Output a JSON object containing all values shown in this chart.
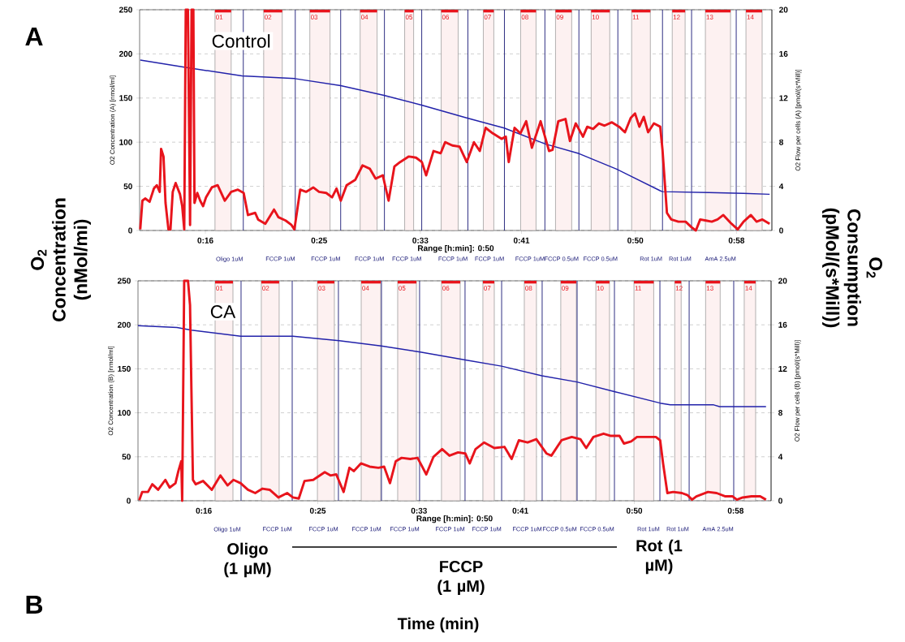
{
  "chart_data": [
    {
      "type": "line",
      "title": "Control",
      "xlabel": "Range [h:min]: 0:50",
      "ylabel": "O2 Concentration (A) [nmol/ml]",
      "y2label": "O2 Flow per cells (A) [pmol/(s*Mill)]",
      "xlim": [
        10.8,
        60.8
      ],
      "xticks": [
        {
          "value": 16,
          "label": "0:16"
        },
        {
          "value": 25,
          "label": "0:25"
        },
        {
          "value": 33,
          "label": "0:33"
        },
        {
          "value": 41,
          "label": "0:41"
        },
        {
          "value": 50,
          "label": "0:50"
        },
        {
          "value": 58,
          "label": "0:58"
        }
      ],
      "ylim": [
        0,
        250
      ],
      "yticks": [
        0,
        50,
        100,
        150,
        200,
        250
      ],
      "y2lim": [
        0,
        20
      ],
      "y2ticks": [
        0,
        4,
        8,
        12,
        16,
        20
      ],
      "grid": "y",
      "series": [
        {
          "color": "#2222aa",
          "x": [
            10.85,
            14.33,
            18.9,
            23.08,
            26.7,
            30.13,
            33.1,
            36.77,
            39.63,
            42.88,
            45.56,
            48.6,
            51.97,
            52.15,
            55.82,
            58.56,
            60.62
          ],
          "values": [
            193,
            185,
            175,
            172,
            164,
            153,
            142,
            127,
            116,
            98,
            87,
            69,
            45,
            44,
            43,
            42,
            41
          ]
        },
        {
          "color": "#e8141c",
          "axis": "y2",
          "x": [
            10.85,
            11.02,
            11.24,
            11.59,
            11.93,
            12.16,
            12.39,
            12.5,
            12.69,
            12.85,
            13.08,
            13.24,
            13.42,
            13.65,
            13.99,
            14.17,
            14.33,
            14.45,
            14.62,
            14.79,
            14.91,
            15.05,
            15.14,
            15.36,
            15.59,
            15.82,
            16.05,
            16.51,
            16.97,
            17.54,
            18.04,
            18.57,
            19.03,
            19.37,
            19.94,
            20.17,
            20.74,
            21.43,
            21.78,
            22.35,
            22.81,
            23.04,
            23.5,
            23.96,
            24.53,
            24.99,
            25.56,
            26.02,
            26.37,
            26.71,
            27.17,
            27.86,
            28.43,
            29.0,
            29.46,
            30.03,
            30.49,
            30.95,
            31.4,
            32.09,
            32.66,
            33.12,
            33.46,
            34.04,
            34.61,
            34.96,
            35.53,
            36.1,
            36.67,
            37.24,
            37.7,
            38.16,
            38.73,
            39.42,
            39.76,
            39.99,
            40.45,
            40.91,
            41.37,
            41.82,
            42.51,
            43.18,
            43.45,
            43.91,
            44.48,
            44.83,
            45.29,
            45.86,
            46.2,
            46.66,
            47.12,
            47.57,
            48.15,
            48.72,
            49.18,
            49.64,
            49.98,
            50.32,
            50.67,
            51.01,
            51.47,
            51.97,
            52.15,
            52.5,
            52.84,
            53.41,
            53.98,
            54.44,
            54.79,
            55.13,
            55.59,
            56.05,
            56.5,
            56.96,
            57.53,
            58.1,
            58.56,
            59.14,
            59.59,
            60.05,
            60.62
          ],
          "values": [
            0.1,
            2.7,
            2.9,
            2.6,
            3.8,
            4.1,
            3.5,
            7.4,
            6.7,
            2.5,
            0.1,
            0.1,
            3.5,
            4.3,
            3.3,
            2.2,
            0.1,
            20,
            20,
            0.5,
            20,
            20,
            2.5,
            3.4,
            2.7,
            2.2,
            3.0,
            3.9,
            4.1,
            2.7,
            3.5,
            3.7,
            3.4,
            1.4,
            1.6,
            1.0,
            0.6,
            1.9,
            1.2,
            0.9,
            0.5,
            0.1,
            3.7,
            3.5,
            3.9,
            3.5,
            3.4,
            3.0,
            3.8,
            2.7,
            4.1,
            4.6,
            5.9,
            5.6,
            4.7,
            5.0,
            2.7,
            5.8,
            6.2,
            6.7,
            6.6,
            6.2,
            5.0,
            7.2,
            7.0,
            8.0,
            7.7,
            7.6,
            6.2,
            8.0,
            7.2,
            9.3,
            8.8,
            8.3,
            8.5,
            6.2,
            9.3,
            8.8,
            9.9,
            7.5,
            9.9,
            7.2,
            7.3,
            9.9,
            10.1,
            8.1,
            9.7,
            8.5,
            9.4,
            9.2,
            9.7,
            9.5,
            9.8,
            9.4,
            8.9,
            10.2,
            10.6,
            9.4,
            10.3,
            8.9,
            9.7,
            9.4,
            7.3,
            1.6,
            1.0,
            0.8,
            0.8,
            0.3,
            0,
            1.0,
            0.9,
            0.8,
            1.0,
            1.4,
            0.7,
            0.1,
            0.8,
            1.4,
            0.8,
            1.0,
            0.6
          ]
        }
      ],
      "ref_lines": [
        {
          "axis": "x",
          "value": 19.0,
          "label": "Oligo 1uM",
          "color": "#1f1f7a"
        },
        {
          "axis": "x",
          "value": 23.11,
          "label": "FCCP 1uM",
          "color": "#1f1f7a"
        },
        {
          "axis": "x",
          "value": 26.7,
          "label": "FCCP 1uM",
          "color": "#1f1f7a"
        },
        {
          "axis": "x",
          "value": 30.16,
          "label": "FCCP 1uM",
          "color": "#1f1f7a"
        },
        {
          "axis": "x",
          "value": 33.11,
          "label": "FCCP 1uM",
          "color": "#1f1f7a"
        },
        {
          "axis": "x",
          "value": 36.76,
          "label": "FCCP 1uM",
          "color": "#1f1f7a"
        },
        {
          "axis": "x",
          "value": 39.65,
          "label": "FCCP 1uM",
          "color": "#1f1f7a"
        },
        {
          "axis": "x",
          "value": 42.85,
          "label": "FCCP 1uM",
          "color": "#1f1f7a"
        },
        {
          "axis": "x",
          "value": 45.54,
          "label": "FCCP 0.5uM",
          "color": "#1f1f7a"
        },
        {
          "axis": "x",
          "value": 48.62,
          "label": "FCCP 0.5uM",
          "color": "#1f1f7a"
        },
        {
          "axis": "x",
          "value": 52.15,
          "label": "Rot 1uM",
          "color": "#1f1f7a"
        },
        {
          "axis": "x",
          "value": 54.45,
          "label": "Rot 1uM",
          "color": "#1f1f7a"
        },
        {
          "axis": "x",
          "value": 57.98,
          "label": "AmA 2.5uM",
          "color": "#1f1f7a"
        }
      ],
      "bands": [
        {
          "axis": "x",
          "from": 16.76,
          "to": 18.04,
          "label": "01",
          "color": "#fdf1f1"
        },
        {
          "axis": "x",
          "from": 20.61,
          "to": 22.08,
          "label": "02",
          "color": "#fdf1f1"
        },
        {
          "axis": "x",
          "from": 24.26,
          "to": 25.86,
          "label": "03",
          "color": "#fdf1f1"
        },
        {
          "axis": "x",
          "from": 28.24,
          "to": 29.58,
          "label": "04",
          "color": "#fdf1f1"
        },
        {
          "axis": "x",
          "from": 31.76,
          "to": 32.47,
          "label": "05",
          "color": "#fdf1f1"
        },
        {
          "axis": "x",
          "from": 34.65,
          "to": 35.99,
          "label": "06",
          "color": "#fdf1f1"
        },
        {
          "axis": "x",
          "from": 37.98,
          "to": 38.81,
          "label": "07",
          "color": "#fdf1f1"
        },
        {
          "axis": "x",
          "from": 40.93,
          "to": 42.15,
          "label": "08",
          "color": "#fdf1f1"
        },
        {
          "axis": "x",
          "from": 43.69,
          "to": 44.97,
          "label": "09",
          "color": "#fdf1f1"
        },
        {
          "axis": "x",
          "from": 46.51,
          "to": 47.98,
          "label": "10",
          "color": "#fdf1f1"
        },
        {
          "axis": "x",
          "from": 49.71,
          "to": 51.19,
          "label": "11",
          "color": "#fdf1f1"
        },
        {
          "axis": "x",
          "from": 52.92,
          "to": 53.94,
          "label": "12",
          "color": "#fdf1f1"
        },
        {
          "axis": "x",
          "from": 55.54,
          "to": 57.53,
          "label": "13",
          "color": "#fdf1f1"
        },
        {
          "axis": "x",
          "from": 58.75,
          "to": 60.03,
          "label": "14",
          "color": "#fdf1f1"
        }
      ],
      "annotations": [
        "A",
        "O$_{2}$ Concentration (nMol/mi)",
        "O$_{2}$ Consumption (pMol/(s*Mill))"
      ]
    },
    {
      "type": "line",
      "title": "CA",
      "xlabel": "Range [h:min]: 0:50",
      "ylabel": "O2 Concentration (B) [nmol/ml]",
      "y2label": "O2 Flow per cells (B) [pmol/(s*Mill)]",
      "xlim": [
        10.8,
        60.8
      ],
      "xticks": [
        {
          "value": 16,
          "label": "0:16"
        },
        {
          "value": 25,
          "label": "0:25"
        },
        {
          "value": 33,
          "label": "0:33"
        },
        {
          "value": 41,
          "label": "0:41"
        },
        {
          "value": 50,
          "label": "0:50"
        },
        {
          "value": 58,
          "label": "0:58"
        }
      ],
      "ylim": [
        0,
        250
      ],
      "yticks": [
        0,
        50,
        100,
        150,
        200,
        250
      ],
      "y2lim": [
        0,
        20
      ],
      "y2ticks": [
        0,
        4,
        8,
        12,
        16,
        20
      ],
      "grid": "y",
      "series": [
        {
          "color": "#2222aa",
          "x": [
            10.8,
            13.88,
            15.02,
            18.91,
            23.03,
            26.69,
            30.01,
            33.1,
            36.65,
            39.51,
            42.7,
            45.47,
            48.42,
            52.04,
            52.84,
            56.27,
            56.73,
            60.4
          ],
          "values": [
            199,
            197,
            194,
            187,
            187,
            182,
            176,
            169,
            160,
            153,
            142,
            135,
            124,
            111,
            109,
            109,
            107,
            107
          ]
        },
        {
          "color": "#e8141c",
          "axis": "y2",
          "x": [
            10.9,
            11.13,
            11.59,
            11.93,
            12.39,
            12.96,
            13.3,
            13.76,
            13.99,
            14.22,
            14.29,
            14.45,
            14.75,
            14.91,
            15.02,
            15.14,
            15.36,
            15.94,
            16.63,
            17.31,
            17.88,
            18.34,
            18.91,
            19.48,
            20.06,
            20.63,
            21.2,
            21.89,
            22.58,
            23.04,
            23.5,
            23.95,
            24.64,
            25.55,
            26.0,
            26.46,
            27.04,
            27.5,
            27.84,
            28.41,
            29.1,
            29.79,
            30.24,
            30.7,
            31.16,
            31.62,
            32.31,
            32.88,
            33.57,
            34.14,
            34.82,
            35.4,
            36.08,
            36.65,
            37.0,
            37.46,
            38.14,
            38.94,
            39.74,
            40.31,
            40.88,
            41.57,
            42.26,
            43.06,
            43.45,
            44.25,
            45.06,
            45.74,
            46.2,
            46.77,
            47.57,
            48.15,
            48.83,
            49.18,
            49.75,
            50.21,
            50.89,
            51.7,
            52.04,
            52.27,
            52.61,
            53.07,
            53.76,
            54.21,
            54.56,
            54.9,
            55.82,
            56.5,
            57.19,
            57.76,
            58.1,
            58.56,
            59.25,
            59.94,
            60.4
          ],
          "values": [
            0.05,
            0.8,
            0.8,
            1.5,
            1.0,
            1.9,
            1.2,
            1.6,
            2.7,
            3.6,
            0,
            20,
            20,
            17.8,
            10.1,
            1.9,
            1.5,
            1.8,
            1.0,
            2.3,
            1.4,
            1.9,
            1.6,
            1.0,
            0.7,
            1.1,
            1.0,
            0.3,
            0.7,
            0.3,
            0.2,
            1.8,
            1.9,
            2.6,
            2.3,
            2.4,
            0.8,
            3.0,
            2.7,
            3.4,
            3.1,
            3.0,
            3.1,
            1.6,
            3.6,
            3.9,
            3.8,
            3.9,
            2.4,
            4.0,
            4.7,
            4.1,
            4.4,
            4.3,
            3.4,
            4.7,
            5.3,
            4.8,
            4.9,
            3.8,
            5.5,
            5.3,
            5.6,
            4.3,
            4.1,
            5.5,
            5.8,
            5.6,
            4.8,
            5.8,
            6.1,
            5.9,
            5.9,
            5.2,
            5.4,
            5.8,
            5.8,
            5.8,
            5.5,
            3.4,
            0.7,
            0.8,
            0.7,
            0.5,
            0.1,
            0.4,
            0.8,
            0.7,
            0.4,
            0.4,
            0.1,
            0.3,
            0.4,
            0.4,
            0.1
          ]
        }
      ],
      "ref_lines": [
        {
          "axis": "x",
          "value": 18.94,
          "label": "Oligo 1uM",
          "color": "#1f1f7a"
        },
        {
          "axis": "x",
          "value": 22.98,
          "label": "FCCP 1uM",
          "color": "#1f1f7a"
        },
        {
          "axis": "x",
          "value": 26.63,
          "label": "FCCP 1uM",
          "color": "#1f1f7a"
        },
        {
          "axis": "x",
          "value": 30.03,
          "label": "FCCP 1uM",
          "color": "#1f1f7a"
        },
        {
          "axis": "x",
          "value": 33.04,
          "label": "FCCP 1uM",
          "color": "#1f1f7a"
        },
        {
          "axis": "x",
          "value": 36.63,
          "label": "FCCP 1uM",
          "color": "#1f1f7a"
        },
        {
          "axis": "x",
          "value": 39.52,
          "label": "FCCP 1uM",
          "color": "#1f1f7a"
        },
        {
          "axis": "x",
          "value": 42.72,
          "label": "FCCP 1uM",
          "color": "#1f1f7a"
        },
        {
          "axis": "x",
          "value": 45.48,
          "label": "FCCP 0.5uM",
          "color": "#1f1f7a"
        },
        {
          "axis": "x",
          "value": 48.43,
          "label": "FCCP 0.5uM",
          "color": "#1f1f7a"
        },
        {
          "axis": "x",
          "value": 52.02,
          "label": "Rot 1uM",
          "color": "#1f1f7a"
        },
        {
          "axis": "x",
          "value": 54.33,
          "label": "Rot 1uM",
          "color": "#1f1f7a"
        },
        {
          "axis": "x",
          "value": 57.85,
          "label": "AmA 2.5uM",
          "color": "#1f1f7a"
        }
      ],
      "bands": [
        {
          "axis": "x",
          "from": 16.89,
          "to": 18.3,
          "label": "01",
          "color": "#fdf1f1"
        },
        {
          "axis": "x",
          "from": 20.54,
          "to": 21.95,
          "label": "02",
          "color": "#fdf1f1"
        },
        {
          "axis": "x",
          "from": 24.97,
          "to": 26.31,
          "label": "03",
          "color": "#fdf1f1"
        },
        {
          "axis": "x",
          "from": 28.43,
          "to": 29.97,
          "label": "04",
          "color": "#fdf1f1"
        },
        {
          "axis": "x",
          "from": 31.31,
          "to": 32.79,
          "label": "05",
          "color": "#fdf1f1"
        },
        {
          "axis": "x",
          "from": 34.77,
          "to": 36.25,
          "label": "06",
          "color": "#fdf1f1"
        },
        {
          "axis": "x",
          "from": 38.04,
          "to": 38.94,
          "label": "07",
          "color": "#fdf1f1"
        },
        {
          "axis": "x",
          "from": 41.31,
          "to": 42.27,
          "label": "08",
          "color": "#fdf1f1"
        },
        {
          "axis": "x",
          "from": 44.19,
          "to": 45.42,
          "label": "09",
          "color": "#fdf1f1"
        },
        {
          "axis": "x",
          "from": 46.96,
          "to": 48.04,
          "label": "10",
          "color": "#fdf1f1"
        },
        {
          "axis": "x",
          "from": 49.97,
          "to": 51.53,
          "label": "11",
          "color": "#fdf1f1"
        },
        {
          "axis": "x",
          "from": 53.19,
          "to": 53.7,
          "label": "12",
          "color": "#fdf1f1"
        },
        {
          "axis": "x",
          "from": 55.63,
          "to": 56.78,
          "label": "13",
          "color": "#fdf1f1"
        },
        {
          "axis": "x",
          "from": 58.68,
          "to": 59.58,
          "label": "14",
          "color": "#fdf1f1"
        }
      ],
      "annotations": [
        "B",
        "Oligo (1 µM)",
        "FCCP (1 µM)",
        "Rot (1 µM)",
        "Time (min)"
      ]
    }
  ]
}
